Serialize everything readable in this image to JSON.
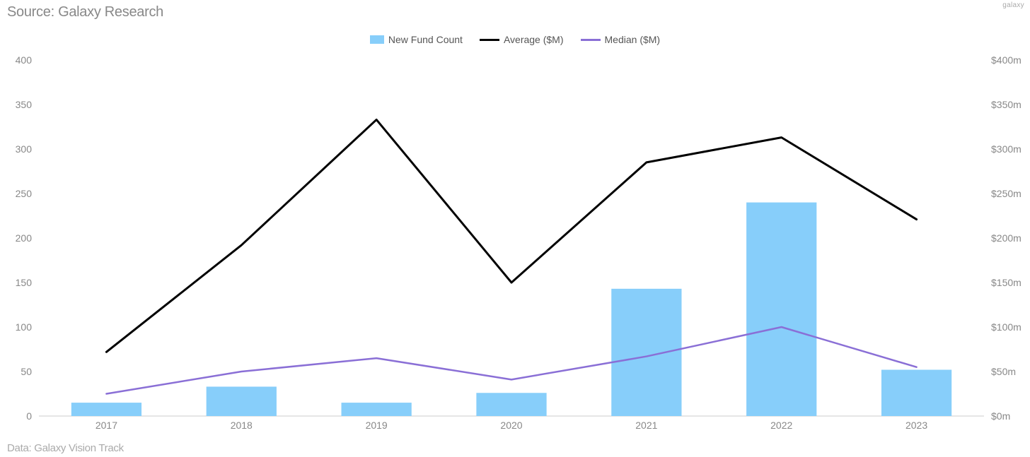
{
  "source_label": "Source: Galaxy Research",
  "footer_label": "Data: Galaxy Vision Track",
  "watermark": "galaxy",
  "legend": {
    "bar_label": "New Fund Count",
    "avg_label": "Average ($M)",
    "median_label": "Median ($M)"
  },
  "chart": {
    "type": "combo-bar-line",
    "categories": [
      "2017",
      "2018",
      "2019",
      "2020",
      "2021",
      "2022",
      "2023"
    ],
    "bar_series": {
      "name": "New Fund Count",
      "values": [
        15,
        33,
        15,
        26,
        143,
        240,
        52
      ],
      "color": "#87cefa"
    },
    "line_series": [
      {
        "name": "Average ($M)",
        "values": [
          72,
          192,
          333,
          150,
          285,
          313,
          221
        ],
        "color": "#000000",
        "line_width": 3
      },
      {
        "name": "Median ($M)",
        "values": [
          25,
          50,
          65,
          41,
          67,
          100,
          55
        ],
        "color": "#8a6fd6",
        "line_width": 2.5
      }
    ],
    "y_left": {
      "min": 0,
      "max": 400,
      "step": 50,
      "tick_labels": [
        "0",
        "50",
        "100",
        "150",
        "200",
        "250",
        "300",
        "350",
        "400"
      ]
    },
    "y_right": {
      "min": 0,
      "max": 400,
      "step": 50,
      "tick_labels": [
        "$0m",
        "$50m",
        "$100m",
        "$150m",
        "$200m",
        "$250m",
        "$300m",
        "$350m",
        "$400m"
      ]
    },
    "bar_width_ratio": 0.52,
    "background_color": "#ffffff",
    "grid": false,
    "label_fontsize": 14,
    "tick_color": "#888888",
    "axis_line_color": "#cccccc"
  }
}
